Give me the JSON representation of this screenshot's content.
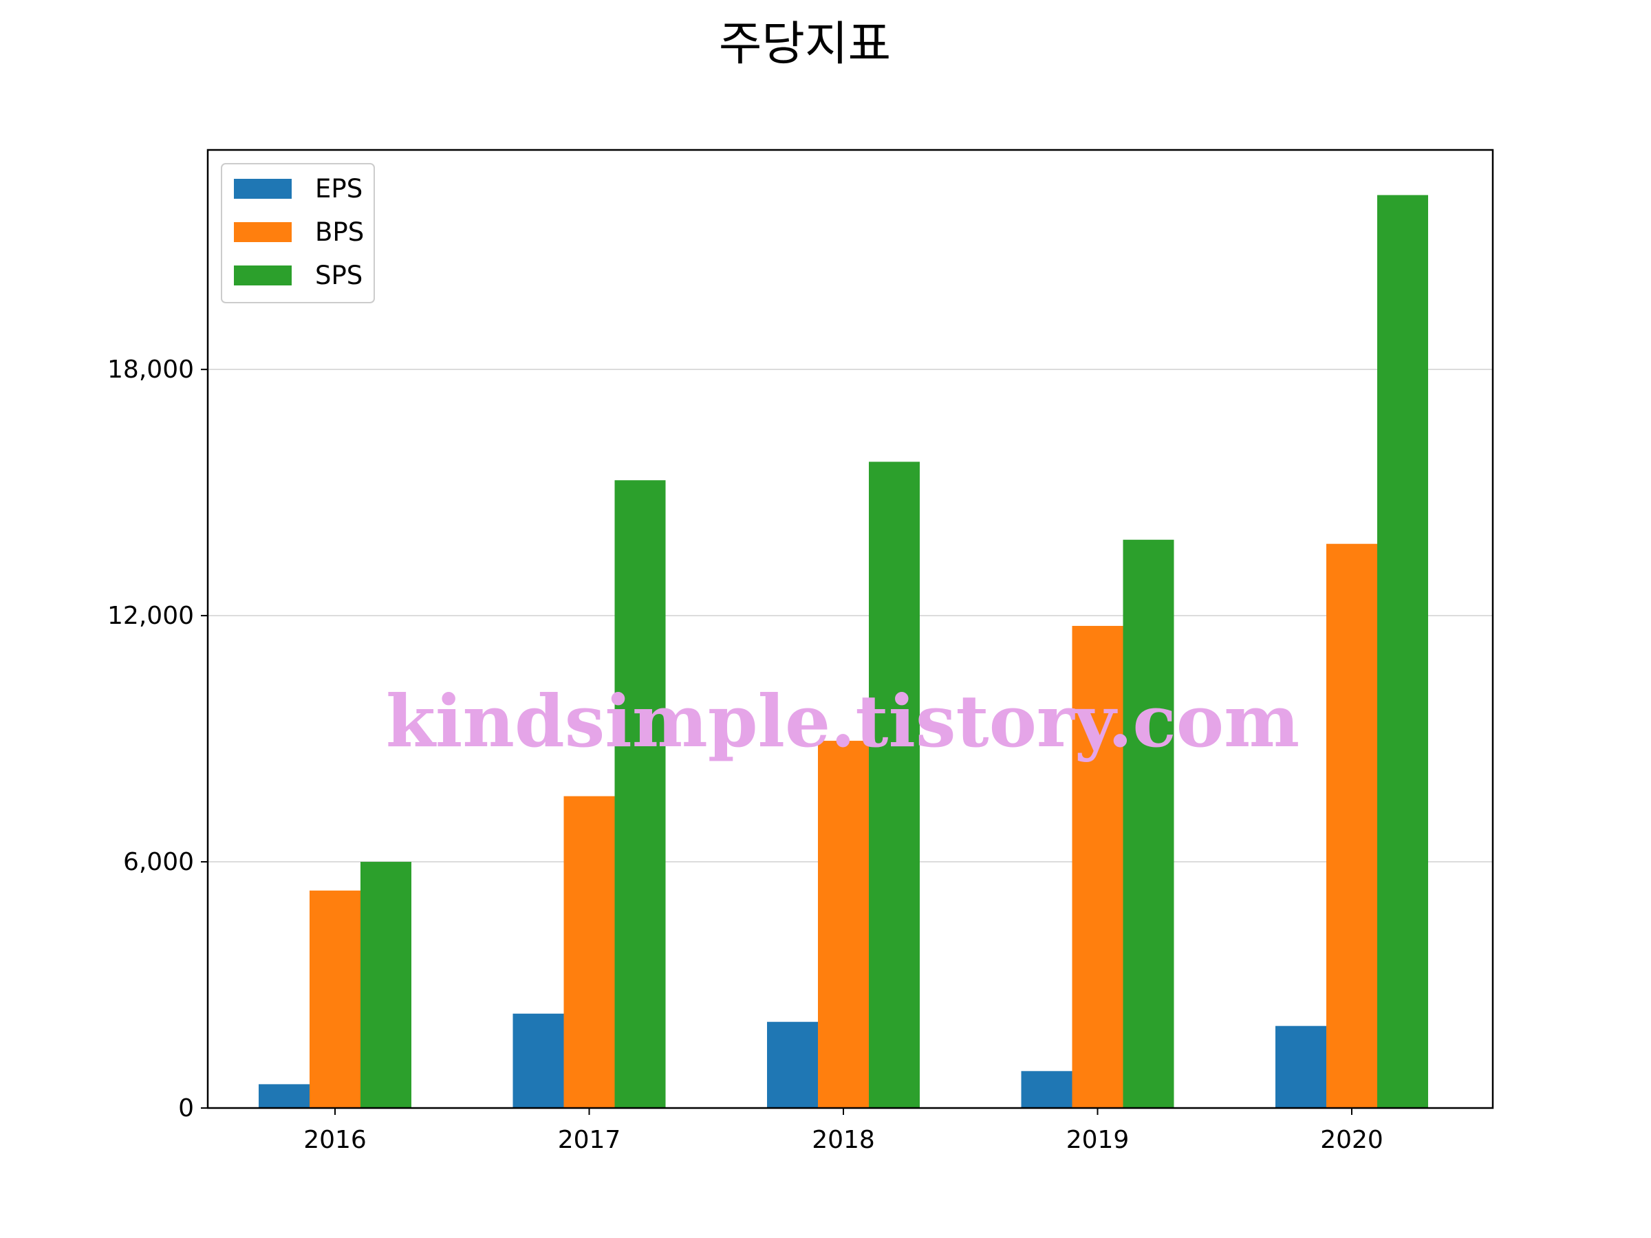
{
  "chart_data": {
    "type": "bar",
    "title": "주당지표",
    "xlabel": "",
    "ylabel": "",
    "categories": [
      "2016",
      "2017",
      "2018",
      "2019",
      "2020"
    ],
    "series": [
      {
        "name": "EPS",
        "color": "#1f77b4",
        "values": [
          580,
          2300,
          2100,
          900,
          2000
        ]
      },
      {
        "name": "BPS",
        "color": "#ff7f0e",
        "values": [
          5300,
          7600,
          8950,
          11750,
          13750
        ]
      },
      {
        "name": "SPS",
        "color": "#2ca02c",
        "values": [
          6000,
          15300,
          15750,
          13850,
          22250
        ]
      }
    ],
    "ylim": [
      0,
      23350
    ],
    "yticks": [
      0,
      6000,
      12000,
      18000
    ],
    "ytick_labels": [
      "0",
      "6,000",
      "12,000",
      "18,000"
    ],
    "grid": "horizontal",
    "legend_position": "top-left"
  },
  "watermark": "kindsimple.tistory.com"
}
